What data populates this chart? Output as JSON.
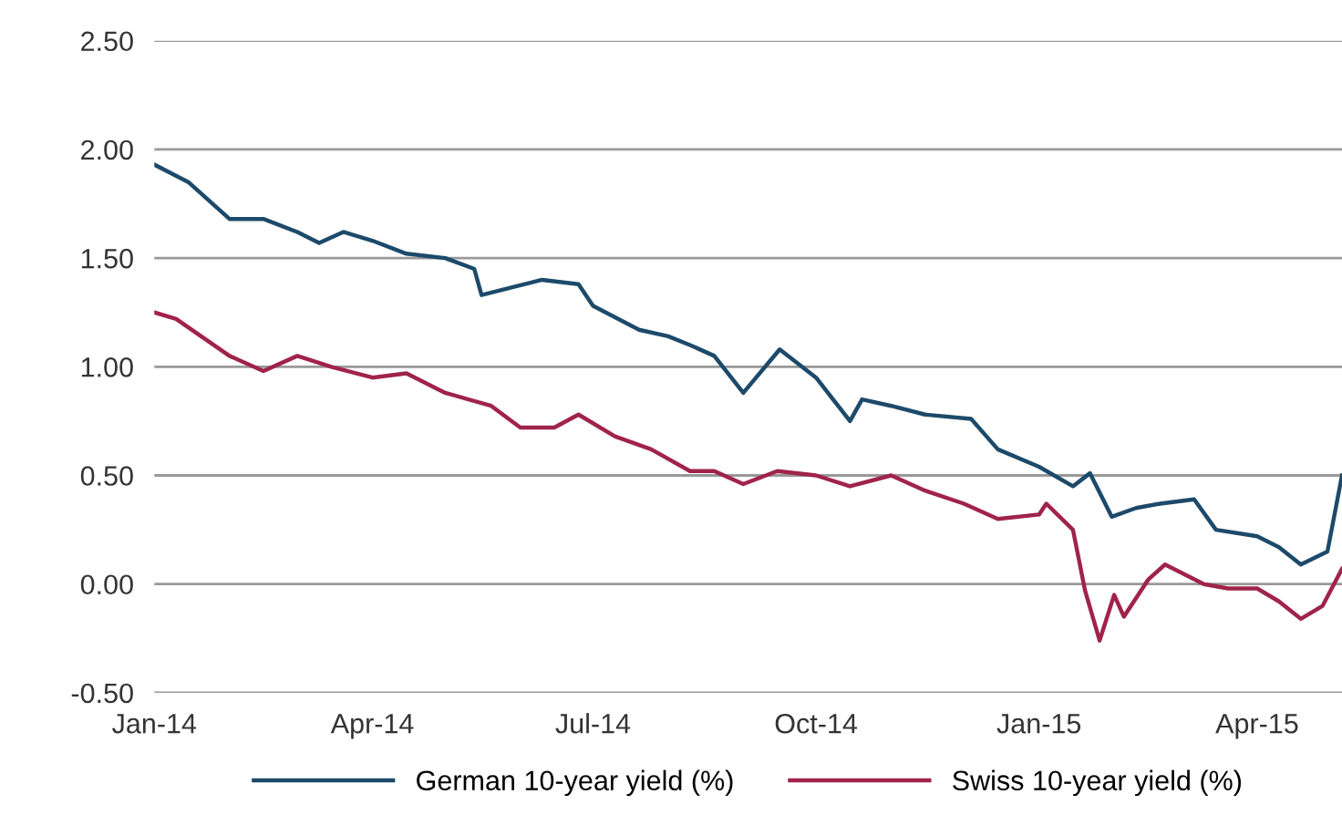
{
  "chart_data": {
    "type": "line",
    "xlim": [
      "2014-01-01",
      "2015-05-06"
    ],
    "xticks": [
      {
        "value": "2014-01-01",
        "label": "Jan-14"
      },
      {
        "value": "2014-04-01",
        "label": "Apr-14"
      },
      {
        "value": "2014-07-01",
        "label": "Jul-14"
      },
      {
        "value": "2014-10-01",
        "label": "Oct-14"
      },
      {
        "value": "2015-01-01",
        "label": "Jan-15"
      },
      {
        "value": "2015-04-01",
        "label": "Apr-15"
      }
    ],
    "ylim": [
      -0.5,
      2.5
    ],
    "yticks": [
      {
        "value": -0.5,
        "label": "-0.50"
      },
      {
        "value": 0,
        "label": "0.00"
      },
      {
        "value": 0.5,
        "label": "0.50"
      },
      {
        "value": 1,
        "label": "1.00"
      },
      {
        "value": 1.5,
        "label": "1.50"
      },
      {
        "value": 2,
        "label": "2.00"
      },
      {
        "value": 2.5,
        "label": "2.50"
      }
    ],
    "grid": "y",
    "legend": "bottom",
    "line_style": "solid",
    "series": [
      {
        "name": "German 10-year yield (%)",
        "color": "#1d4a6a",
        "x": [
          "2014-01-01",
          "2014-01-15",
          "2014-02-01",
          "2014-02-15",
          "2014-03-01",
          "2014-03-10",
          "2014-03-20",
          "2014-04-01",
          "2014-04-15",
          "2014-05-01",
          "2014-05-13",
          "2014-05-16",
          "2014-06-10",
          "2014-06-25",
          "2014-07-01",
          "2014-07-20",
          "2014-08-01",
          "2014-08-10",
          "2014-08-20",
          "2014-09-01",
          "2014-09-16",
          "2014-10-01",
          "2014-10-15",
          "2014-10-20",
          "2014-11-01",
          "2014-11-15",
          "2014-12-04",
          "2014-12-15",
          "2015-01-01",
          "2015-01-15",
          "2015-01-22",
          "2015-01-31",
          "2015-02-10",
          "2015-02-20",
          "2015-03-06",
          "2015-03-15",
          "2015-04-01",
          "2015-04-10",
          "2015-04-19",
          "2015-04-30",
          "2015-05-06"
        ],
        "values": [
          1.93,
          1.85,
          1.68,
          1.68,
          1.62,
          1.57,
          1.62,
          1.58,
          1.52,
          1.5,
          1.45,
          1.33,
          1.4,
          1.38,
          1.28,
          1.17,
          1.14,
          1.1,
          1.05,
          0.88,
          1.08,
          0.95,
          0.75,
          0.85,
          0.82,
          0.78,
          0.76,
          0.62,
          0.54,
          0.45,
          0.51,
          0.31,
          0.35,
          0.37,
          0.39,
          0.25,
          0.22,
          0.17,
          0.09,
          0.15,
          0.5
        ]
      },
      {
        "name": "Swiss 10-year yield (%)",
        "color": "#a0234a",
        "x": [
          "2014-01-01",
          "2014-01-10",
          "2014-02-01",
          "2014-02-15",
          "2014-03-01",
          "2014-03-15",
          "2014-04-01",
          "2014-04-15",
          "2014-05-01",
          "2014-05-20",
          "2014-06-01",
          "2014-06-15",
          "2014-06-25",
          "2014-07-10",
          "2014-07-25",
          "2014-08-10",
          "2014-08-20",
          "2014-09-01",
          "2014-09-15",
          "2014-10-01",
          "2014-10-15",
          "2014-11-01",
          "2014-11-15",
          "2014-12-01",
          "2014-12-15",
          "2015-01-01",
          "2015-01-04",
          "2015-01-15",
          "2015-01-20",
          "2015-01-26",
          "2015-02-01",
          "2015-02-05",
          "2015-02-15",
          "2015-02-22",
          "2015-03-10",
          "2015-03-20",
          "2015-04-01",
          "2015-04-10",
          "2015-04-19",
          "2015-04-28",
          "2015-05-06"
        ],
        "values": [
          1.25,
          1.22,
          1.05,
          0.98,
          1.05,
          1.0,
          0.95,
          0.97,
          0.88,
          0.82,
          0.72,
          0.72,
          0.78,
          0.68,
          0.62,
          0.52,
          0.52,
          0.46,
          0.52,
          0.5,
          0.45,
          0.5,
          0.43,
          0.37,
          0.3,
          0.32,
          0.37,
          0.25,
          -0.03,
          -0.26,
          -0.05,
          -0.15,
          0.02,
          0.09,
          0.0,
          -0.02,
          -0.02,
          -0.08,
          -0.16,
          -0.1,
          0.07
        ]
      }
    ]
  }
}
